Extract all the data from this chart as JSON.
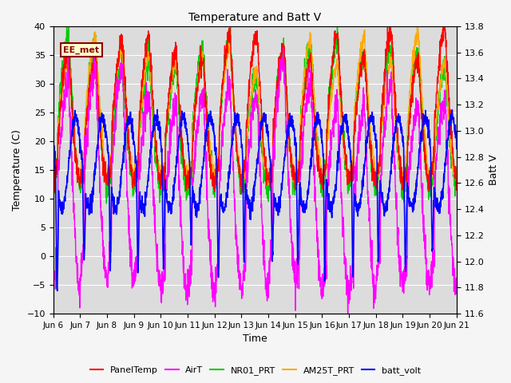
{
  "title": "Temperature and Batt V",
  "xlabel": "Time",
  "ylabel_left": "Temperature (C)",
  "ylabel_right": "Batt V",
  "annotation_text": "EE_met",
  "annotation_color": "#8B0000",
  "plot_bg_color": "#dcdcdc",
  "fig_bg_color": "#f5f5f5",
  "ylim_left": [
    -10,
    40
  ],
  "ylim_right": [
    11.6,
    13.8
  ],
  "yticks_left": [
    -10,
    -5,
    0,
    5,
    10,
    15,
    20,
    25,
    30,
    35,
    40
  ],
  "yticks_right": [
    11.6,
    11.8,
    12.0,
    12.2,
    12.4,
    12.6,
    12.8,
    13.0,
    13.2,
    13.4,
    13.6,
    13.8
  ],
  "xtick_labels": [
    "Jun 6",
    "Jun 7",
    "Jun 8",
    "Jun 9",
    "Jun 10",
    "Jun 11",
    "Jun 12",
    "Jun 13",
    "Jun 14",
    "Jun 15",
    "Jun 16",
    "Jun 17",
    "Jun 18",
    "Jun 19",
    "Jun 20",
    "Jun 21"
  ],
  "series": {
    "PanelTemp": {
      "color": "#ff0000",
      "lw": 1.0
    },
    "AirT": {
      "color": "#ff00ff",
      "lw": 1.0
    },
    "NR01_PRT": {
      "color": "#00cc00",
      "lw": 1.0
    },
    "AM25T_PRT": {
      "color": "#ffaa00",
      "lw": 1.0
    },
    "batt_volt": {
      "color": "#0000ff",
      "lw": 1.2
    }
  }
}
